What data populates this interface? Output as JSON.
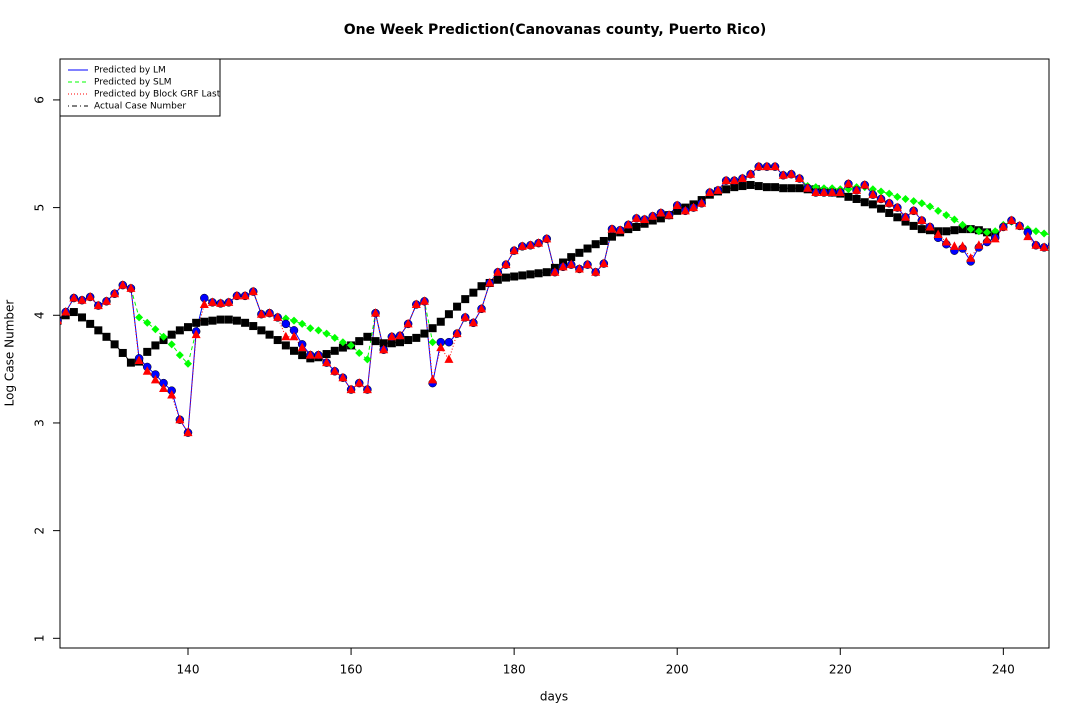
{
  "chart_data": {
    "type": "scatter-line",
    "title": "One Week Prediction(Canovanas county, Puerto Rico)",
    "x_label": "days",
    "y_label": "Log Case Number",
    "xlim": [
      124.3,
      245.6
    ],
    "ylim": [
      0.91,
      6.38
    ],
    "xticks": [
      140,
      160,
      180,
      200,
      220,
      240
    ],
    "yticks": [
      1,
      2,
      3,
      4,
      5,
      6
    ],
    "grid": false,
    "legend": "top-left",
    "x": [
      124,
      125,
      126,
      127,
      128,
      129,
      130,
      131,
      132,
      133,
      134,
      135,
      136,
      137,
      138,
      139,
      140,
      141,
      142,
      143,
      144,
      145,
      146,
      147,
      148,
      149,
      150,
      151,
      152,
      153,
      154,
      155,
      156,
      157,
      158,
      159,
      160,
      161,
      162,
      163,
      164,
      165,
      166,
      167,
      168,
      169,
      170,
      171,
      172,
      173,
      174,
      175,
      176,
      177,
      178,
      179,
      180,
      181,
      182,
      183,
      184,
      185,
      186,
      187,
      188,
      189,
      190,
      191,
      192,
      193,
      194,
      195,
      196,
      197,
      198,
      199,
      200,
      201,
      202,
      203,
      204,
      205,
      206,
      207,
      208,
      209,
      210,
      211,
      212,
      213,
      214,
      215,
      216,
      217,
      218,
      219,
      220,
      221,
      222,
      223,
      224,
      225,
      226,
      227,
      228,
      229,
      230,
      231,
      232,
      233,
      234,
      235,
      236,
      237,
      238,
      239,
      240,
      241,
      242,
      243,
      244,
      245,
      246
    ],
    "series": [
      {
        "name": "Actual Case Number",
        "color": "#000000",
        "marker": "square",
        "dash": "dotdash",
        "values": [
          3.95,
          4.0,
          4.03,
          3.98,
          3.92,
          3.86,
          3.8,
          3.73,
          3.65,
          3.56,
          3.57,
          3.66,
          3.72,
          3.77,
          3.82,
          3.86,
          3.89,
          3.93,
          3.94,
          3.95,
          3.96,
          3.96,
          3.95,
          3.93,
          3.9,
          3.86,
          3.82,
          3.77,
          3.72,
          3.67,
          3.63,
          3.6,
          3.61,
          3.64,
          3.67,
          3.7,
          3.72,
          3.76,
          3.8,
          3.76,
          3.74,
          3.74,
          3.75,
          3.77,
          3.79,
          3.83,
          3.88,
          3.94,
          4.01,
          4.08,
          4.15,
          4.21,
          4.27,
          4.3,
          4.33,
          4.35,
          4.36,
          4.37,
          4.38,
          4.39,
          4.4,
          4.44,
          4.49,
          4.54,
          4.58,
          4.62,
          4.66,
          4.69,
          4.73,
          4.77,
          4.8,
          4.82,
          4.85,
          4.88,
          4.9,
          4.93,
          4.97,
          5.0,
          5.03,
          5.07,
          5.12,
          5.15,
          5.17,
          5.19,
          5.2,
          5.21,
          5.2,
          5.19,
          5.19,
          5.18,
          5.18,
          5.18,
          5.17,
          5.17,
          5.15,
          5.14,
          5.13,
          5.1,
          5.08,
          5.05,
          5.03,
          4.99,
          4.95,
          4.91,
          4.87,
          4.83,
          4.8,
          4.79,
          4.78,
          4.78,
          4.79,
          4.8,
          4.8,
          4.79,
          4.77,
          4.75,
          null,
          null,
          null,
          null,
          null,
          null,
          null
        ]
      },
      {
        "name": "Predicted by SLM",
        "color": "#00ff00",
        "marker": "diamond",
        "dash": "dashed",
        "values": [
          3.95,
          4.03,
          4.16,
          4.14,
          4.17,
          4.09,
          4.13,
          4.2,
          4.28,
          4.25,
          3.98,
          3.93,
          3.87,
          3.8,
          3.73,
          3.63,
          3.55,
          3.85,
          4.16,
          4.12,
          4.11,
          4.12,
          4.18,
          4.18,
          4.22,
          4.01,
          4.02,
          3.98,
          3.97,
          3.95,
          3.92,
          3.88,
          3.86,
          3.83,
          3.79,
          3.75,
          3.72,
          3.65,
          3.59,
          4.02,
          3.68,
          3.8,
          3.81,
          3.92,
          4.1,
          4.13,
          3.75,
          3.73,
          3.75,
          3.83,
          3.98,
          3.93,
          4.06,
          4.3,
          4.4,
          4.47,
          4.6,
          4.64,
          4.65,
          4.67,
          4.71,
          4.4,
          4.45,
          4.47,
          4.43,
          4.47,
          4.4,
          4.48,
          4.8,
          4.79,
          4.84,
          4.9,
          4.89,
          4.92,
          4.95,
          4.93,
          5.02,
          4.97,
          5.0,
          5.04,
          5.14,
          5.16,
          5.25,
          5.25,
          5.27,
          5.31,
          5.38,
          5.38,
          5.38,
          5.3,
          5.31,
          5.27,
          5.2,
          5.19,
          5.18,
          5.18,
          5.17,
          5.17,
          5.19,
          5.19,
          5.17,
          5.15,
          5.13,
          5.1,
          5.08,
          5.06,
          5.04,
          5.01,
          4.97,
          4.93,
          4.89,
          4.84,
          4.8,
          4.78,
          4.77,
          4.78,
          4.84,
          4.87,
          4.83,
          4.8,
          4.78,
          4.76,
          4.74
        ]
      },
      {
        "name": "Predicted by LM",
        "color": "#0000ff",
        "marker": "circle",
        "dash": "solid",
        "values": [
          3.95,
          4.03,
          4.16,
          4.14,
          4.17,
          4.09,
          4.13,
          4.2,
          4.28,
          4.25,
          3.6,
          3.52,
          3.45,
          3.37,
          3.3,
          3.03,
          2.91,
          3.85,
          4.16,
          4.12,
          4.11,
          4.12,
          4.18,
          4.18,
          4.22,
          4.01,
          4.02,
          3.98,
          3.92,
          3.86,
          3.73,
          3.63,
          3.63,
          3.56,
          3.48,
          3.42,
          3.31,
          3.37,
          3.31,
          4.02,
          3.68,
          3.8,
          3.81,
          3.92,
          4.1,
          4.13,
          3.37,
          3.75,
          3.75,
          3.83,
          3.98,
          3.93,
          4.06,
          4.3,
          4.4,
          4.47,
          4.6,
          4.64,
          4.65,
          4.67,
          4.71,
          4.4,
          4.45,
          4.47,
          4.43,
          4.47,
          4.4,
          4.48,
          4.8,
          4.79,
          4.84,
          4.9,
          4.89,
          4.92,
          4.95,
          4.93,
          5.02,
          4.97,
          5.0,
          5.04,
          5.14,
          5.16,
          5.25,
          5.25,
          5.27,
          5.31,
          5.38,
          5.38,
          5.38,
          5.3,
          5.31,
          5.27,
          5.18,
          5.14,
          5.14,
          5.14,
          5.14,
          5.22,
          5.16,
          5.21,
          5.12,
          5.08,
          5.04,
          5.0,
          4.91,
          4.97,
          4.88,
          4.82,
          4.72,
          4.66,
          4.6,
          4.62,
          4.5,
          4.63,
          4.68,
          4.72,
          4.82,
          4.88,
          4.83,
          4.77,
          4.65,
          4.63,
          4.66
        ]
      },
      {
        "name": "Predicted by Block GRF Last",
        "color": "#ff0000",
        "marker": "triangle",
        "dash": "dotted",
        "values": [
          3.95,
          4.03,
          4.16,
          4.14,
          4.17,
          4.09,
          4.13,
          4.2,
          4.28,
          4.25,
          3.58,
          3.48,
          3.4,
          3.32,
          3.26,
          3.03,
          2.91,
          3.82,
          4.1,
          4.12,
          4.11,
          4.12,
          4.18,
          4.18,
          4.22,
          4.01,
          4.02,
          3.98,
          3.8,
          3.8,
          3.7,
          3.63,
          3.63,
          3.56,
          3.48,
          3.42,
          3.31,
          3.37,
          3.31,
          4.02,
          3.68,
          3.8,
          3.81,
          3.92,
          4.1,
          4.13,
          3.4,
          3.7,
          3.59,
          3.83,
          3.98,
          3.93,
          4.06,
          4.3,
          4.4,
          4.47,
          4.6,
          4.64,
          4.65,
          4.67,
          4.71,
          4.4,
          4.45,
          4.47,
          4.43,
          4.47,
          4.4,
          4.48,
          4.8,
          4.79,
          4.84,
          4.9,
          4.89,
          4.92,
          4.95,
          4.93,
          5.02,
          4.97,
          5.0,
          5.04,
          5.14,
          5.16,
          5.25,
          5.25,
          5.27,
          5.31,
          5.38,
          5.38,
          5.38,
          5.3,
          5.31,
          5.27,
          5.18,
          5.14,
          5.14,
          5.14,
          5.14,
          5.22,
          5.16,
          5.21,
          5.12,
          5.08,
          5.04,
          5.0,
          4.91,
          4.97,
          4.88,
          4.82,
          4.75,
          4.68,
          4.64,
          4.64,
          4.53,
          4.65,
          4.7,
          4.71,
          4.82,
          4.88,
          4.83,
          4.73,
          4.65,
          4.63,
          4.66
        ]
      }
    ]
  }
}
